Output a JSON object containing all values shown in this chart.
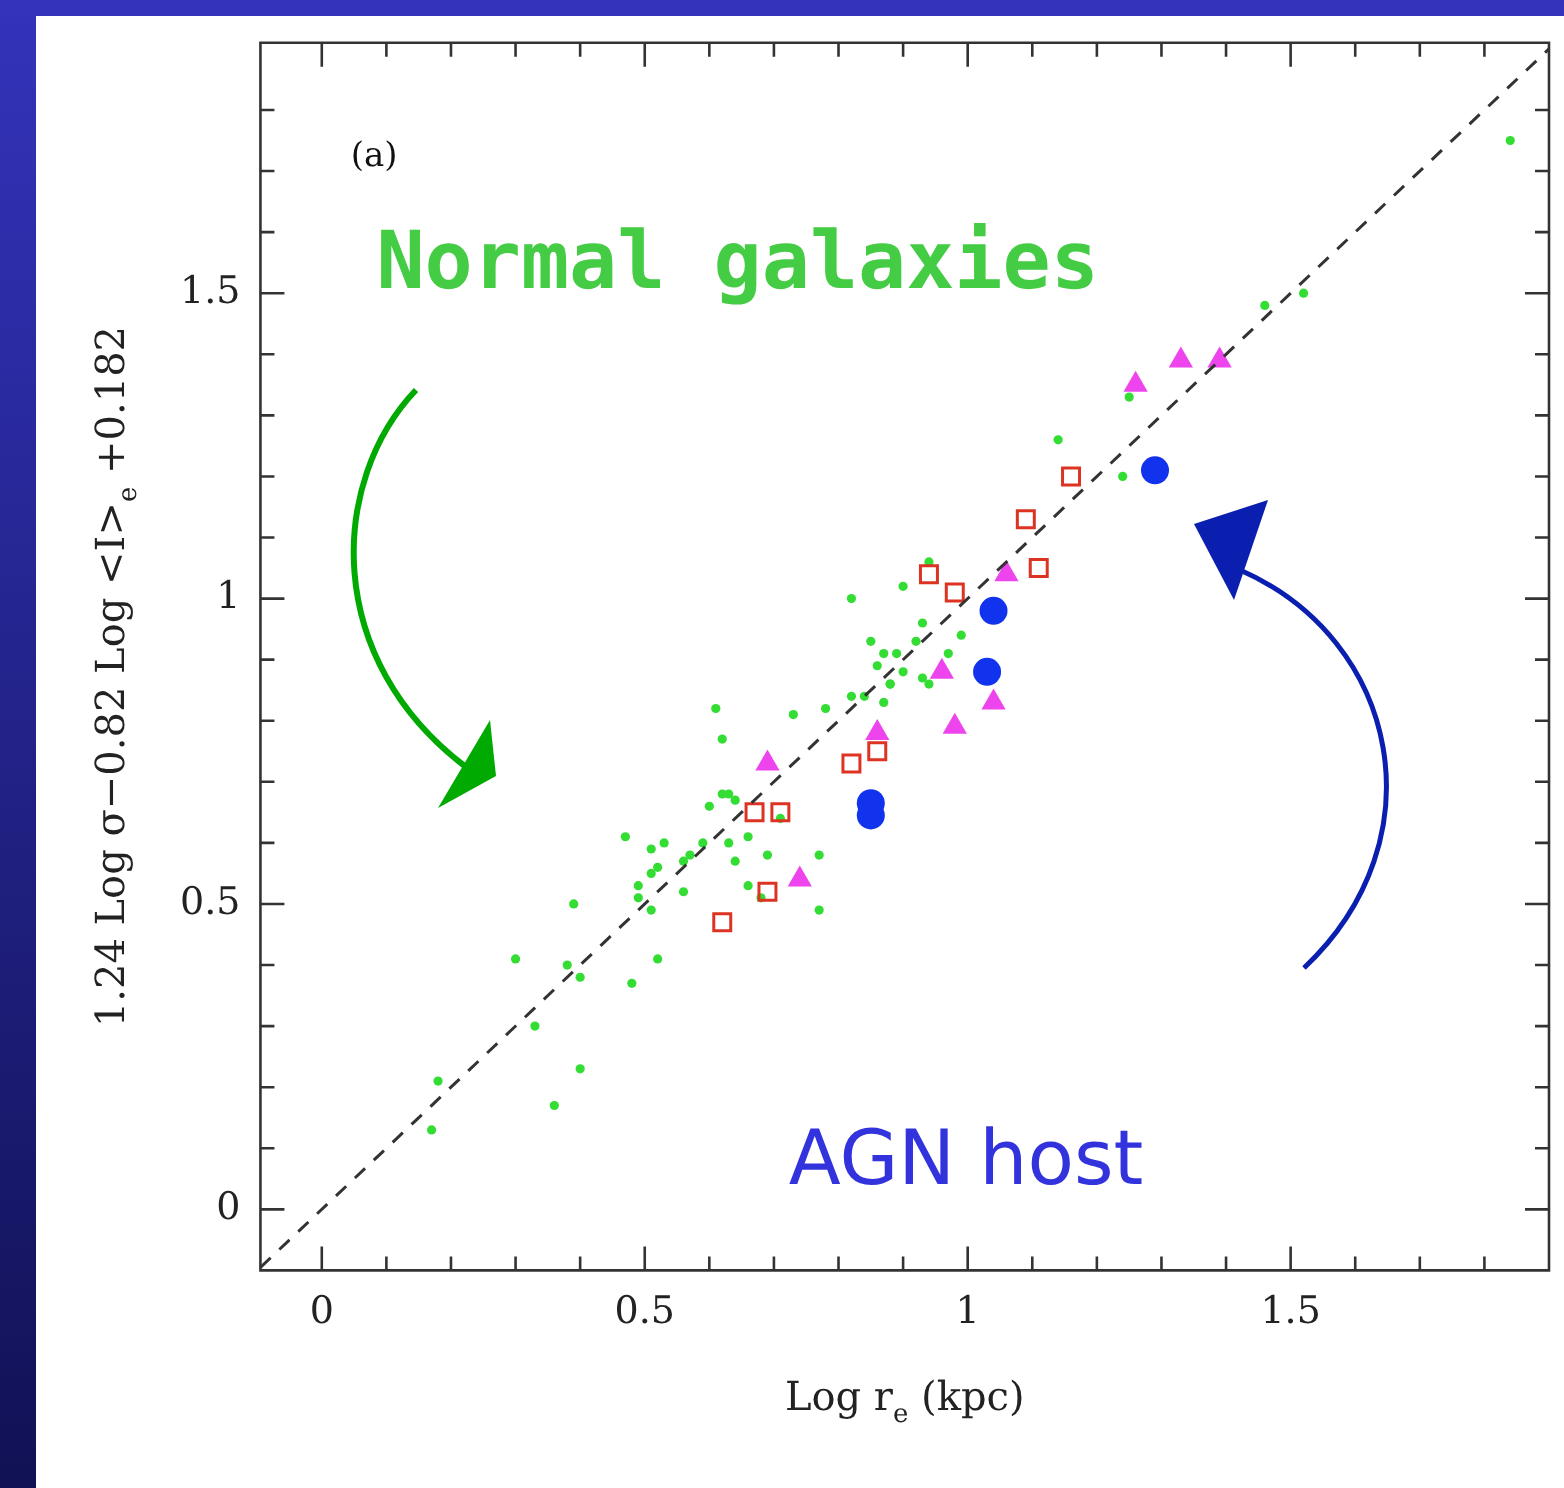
{
  "chart_data": {
    "type": "scatter",
    "xlabel": "Log r$_{e}$ (kpc)",
    "ylabel": "1.24 Log σ−0.82 Log <I>$_{e}$ +0.182",
    "annotations": [
      "(a)",
      "Normal galaxies",
      "AGN host"
    ],
    "xlim": [
      -0.095,
      1.9
    ],
    "ylim": [
      -0.1,
      1.91
    ],
    "xticks": [
      0,
      {
        "value": 0.1,
        "label": null
      },
      {
        "value": 0.2,
        "label": null
      },
      {
        "value": 0.3,
        "label": null
      },
      {
        "value": 0.4,
        "label": null
      },
      0.5,
      {
        "value": 0.6,
        "label": null
      },
      {
        "value": 0.7,
        "label": null
      },
      {
        "value": 0.8,
        "label": null
      },
      {
        "value": 0.9,
        "label": null
      },
      1,
      {
        "value": 1.1,
        "label": null
      },
      {
        "value": 1.2,
        "label": null
      },
      {
        "value": 1.3,
        "label": null
      },
      {
        "value": 1.4,
        "label": null
      },
      1.5,
      {
        "value": 1.6,
        "label": null
      },
      {
        "value": 1.7,
        "label": null
      },
      {
        "value": 1.8,
        "label": null
      }
    ],
    "yticks": [
      0,
      {
        "value": 0.1,
        "label": null
      },
      {
        "value": 0.2,
        "label": null
      },
      {
        "value": 0.3,
        "label": null
      },
      {
        "value": 0.4,
        "label": null
      },
      0.5,
      {
        "value": 0.6,
        "label": null
      },
      {
        "value": 0.7,
        "label": null
      },
      {
        "value": 0.8,
        "label": null
      },
      {
        "value": 0.9,
        "label": null
      },
      1,
      {
        "value": 1.1,
        "label": null
      },
      {
        "value": 1.2,
        "label": null
      },
      {
        "value": 1.3,
        "label": null
      },
      {
        "value": 1.4,
        "label": null
      },
      1.5,
      {
        "value": 1.6,
        "label": null
      },
      {
        "value": 1.7,
        "label": null
      },
      {
        "value": 1.8,
        "label": null
      }
    ],
    "grid": false,
    "legend": false,
    "series": [
      {
        "type": "scatter",
        "marker": "circle",
        "color": "#33dd33",
        "x": [
          0.17,
          0.18,
          0.36,
          0.4,
          0.33,
          0.3,
          0.38,
          0.4,
          0.39,
          0.48,
          0.52,
          0.47,
          0.49,
          0.49,
          0.51,
          0.51,
          0.53,
          0.52,
          0.51,
          0.56,
          0.57,
          0.56,
          0.59,
          0.6,
          0.62,
          0.63,
          0.64,
          0.63,
          0.64,
          0.66,
          0.69,
          0.66,
          0.68,
          0.77,
          0.77,
          0.71,
          0.82,
          0.85,
          0.78,
          0.73,
          0.61,
          0.62,
          0.82,
          0.84,
          0.87,
          0.86,
          0.87,
          0.88,
          1.25,
          1.14,
          1.24,
          0.94,
          0.9,
          0.99,
          0.93,
          0.92,
          0.89,
          0.9,
          0.93,
          0.94,
          0.97,
          0.88,
          1.46,
          1.52,
          1.84
        ],
        "values": [
          0.13,
          0.21,
          0.17,
          0.23,
          0.3,
          0.41,
          0.4,
          0.38,
          0.5,
          0.37,
          0.41,
          0.61,
          0.53,
          0.51,
          0.55,
          0.59,
          0.6,
          0.56,
          0.49,
          0.52,
          0.58,
          0.57,
          0.6,
          0.66,
          0.68,
          0.68,
          0.67,
          0.6,
          0.57,
          0.61,
          0.58,
          0.53,
          0.51,
          0.58,
          0.49,
          0.64,
          1.0,
          0.93,
          0.82,
          0.81,
          0.82,
          0.77,
          0.84,
          0.84,
          0.83,
          0.89,
          0.91,
          0.86,
          1.33,
          1.26,
          1.2,
          1.06,
          1.02,
          0.94,
          0.96,
          0.93,
          0.91,
          0.88,
          0.87,
          0.86,
          0.91,
          0.86,
          1.48,
          1.5,
          1.75
        ]
      },
      {
        "type": "scatter",
        "marker": "square",
        "color": "#dd3322",
        "x": [
          0.62,
          0.69,
          0.67,
          0.71,
          0.82,
          0.86,
          0.94,
          0.98,
          1.11,
          1.09,
          1.16
        ],
        "values": [
          0.47,
          0.52,
          0.65,
          0.65,
          0.73,
          0.75,
          1.04,
          1.01,
          1.05,
          1.13,
          1.2
        ]
      },
      {
        "type": "scatter",
        "marker": "triangle",
        "color": "#ee44ee",
        "x": [
          0.69,
          0.74,
          0.86,
          1.06,
          0.96,
          1.04,
          0.98,
          1.26,
          1.33,
          1.39
        ],
        "values": [
          0.73,
          0.54,
          0.78,
          1.04,
          0.88,
          0.83,
          0.79,
          1.35,
          1.39,
          1.39
        ]
      },
      {
        "type": "scatter",
        "marker": "circle",
        "color": "#1133ee",
        "x": [
          1.29,
          1.04,
          1.03,
          0.85,
          0.85
        ],
        "values": [
          1.21,
          0.98,
          0.88,
          0.665,
          0.645
        ]
      },
      {
        "type": "line",
        "marker": "none",
        "line_style": "dashed",
        "color": "#333333",
        "x": [
          -0.095,
          1.9
        ],
        "values": [
          -0.095,
          1.9
        ]
      }
    ]
  }
}
